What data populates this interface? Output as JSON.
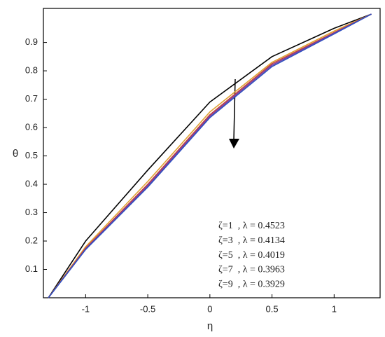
{
  "chart_data": {
    "type": "line",
    "xlabel": "η",
    "ylabel": "θ",
    "x": [
      -1.3,
      -1,
      -0.5,
      0,
      0.5,
      1,
      1.3
    ],
    "series": [
      {
        "name": "ζ=1  , λ = 0.4523",
        "color": "#000000",
        "values": [
          0,
          0.2,
          0.45,
          0.69,
          0.85,
          0.95,
          1
        ]
      },
      {
        "name": "ζ=3  , λ = 0.4134",
        "color": "#e0a030",
        "values": [
          0,
          0.18,
          0.41,
          0.655,
          0.83,
          0.94,
          1
        ]
      },
      {
        "name": "ζ=5  , λ = 0.4019",
        "color": "#c04040",
        "values": [
          0,
          0.175,
          0.4,
          0.645,
          0.825,
          0.935,
          1
        ]
      },
      {
        "name": "ζ=7  , λ = 0.3963",
        "color": "#7b3fa0",
        "values": [
          0,
          0.172,
          0.395,
          0.64,
          0.82,
          0.933,
          1
        ]
      },
      {
        "name": "ζ=9  , λ = 0.3929",
        "color": "#3050c0",
        "values": [
          0,
          0.17,
          0.39,
          0.635,
          0.815,
          0.93,
          1
        ]
      }
    ],
    "xlim": [
      -1.34,
      1.37
    ],
    "ylim": [
      0,
      1.02
    ],
    "xticks": [
      -1,
      -0.5,
      0,
      0.5,
      1
    ],
    "yticks": [
      0.1,
      0.2,
      0.3,
      0.4,
      0.5,
      0.6,
      0.7,
      0.8,
      0.9
    ],
    "grid": false
  }
}
